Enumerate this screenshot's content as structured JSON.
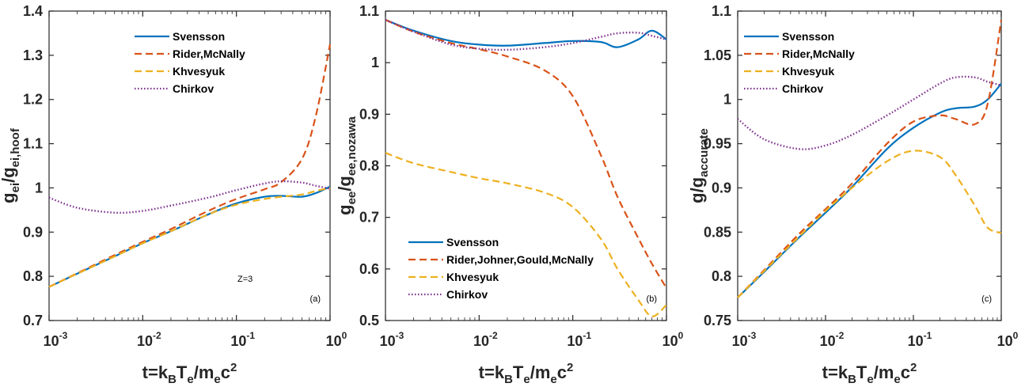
{
  "colors": {
    "Svensson": "#0072BD",
    "Rider": "#D95319",
    "Khvesyuk": "#EDB120",
    "Chirkov": "#7E2F8E"
  },
  "chart_data": [
    {
      "type": "line",
      "panel": "(a)",
      "annotation": "Z=3",
      "xlabel": "t=k_B T_e/m_e c^2",
      "ylabel": "g_ei/g_ei,hoof",
      "xscale": "log",
      "xlim": [
        0.001,
        1
      ],
      "ylim": [
        0.7,
        1.4
      ],
      "xticks": [
        "-3",
        "-2",
        "-1",
        "0"
      ],
      "yticks": [
        "0.7",
        "0.8",
        "0.9",
        "1",
        "1.1",
        "1.2",
        "1.3",
        "1.4"
      ],
      "legend_position": "top-center",
      "x": [
        0.001,
        0.002,
        0.005,
        0.01,
        0.02,
        0.05,
        0.1,
        0.2,
        0.3,
        0.5,
        0.7,
        1
      ],
      "series": [
        {
          "name": "Svensson",
          "style": "solid",
          "values": [
            0.776,
            0.806,
            0.845,
            0.875,
            0.902,
            0.94,
            0.965,
            0.98,
            0.982,
            0.98,
            0.988,
            1.003
          ]
        },
        {
          "name": "Rider,McNally",
          "style": "dashed",
          "values": [
            0.776,
            0.807,
            0.848,
            0.878,
            0.907,
            0.948,
            0.975,
            0.997,
            1.013,
            1.065,
            1.16,
            1.325
          ]
        },
        {
          "name": "Khvesyuk",
          "style": "dashed",
          "values": [
            0.776,
            0.806,
            0.845,
            0.875,
            0.902,
            0.94,
            0.962,
            0.975,
            0.98,
            0.985,
            0.993,
            1.0
          ]
        },
        {
          "name": "Chirkov",
          "style": "dotted",
          "values": [
            0.978,
            0.955,
            0.944,
            0.948,
            0.96,
            0.978,
            0.995,
            1.01,
            1.015,
            1.012,
            1.005,
            0.998
          ]
        }
      ]
    },
    {
      "type": "line",
      "panel": "(b)",
      "xlabel": "t=k_B T_e/m_e c^2",
      "ylabel": "g_ee/g_ee,nozawa",
      "xscale": "log",
      "xlim": [
        0.001,
        1
      ],
      "ylim": [
        0.5,
        1.1
      ],
      "xticks": [
        "-3",
        "-2",
        "-1",
        "0"
      ],
      "yticks": [
        "0.5",
        "0.6",
        "0.7",
        "0.8",
        "0.9",
        "1",
        "1.1"
      ],
      "legend_position": "bottom-left",
      "x": [
        0.001,
        0.002,
        0.005,
        0.01,
        0.02,
        0.05,
        0.1,
        0.2,
        0.3,
        0.5,
        0.7,
        1
      ],
      "series": [
        {
          "name": "Svensson",
          "style": "solid",
          "values": [
            1.083,
            1.062,
            1.042,
            1.035,
            1.033,
            1.038,
            1.042,
            1.04,
            1.03,
            1.045,
            1.062,
            1.045
          ]
        },
        {
          "name": "Rider,Johner,Gould,McNally",
          "style": "dashed",
          "values": [
            1.083,
            1.06,
            1.038,
            1.026,
            1.012,
            0.985,
            0.935,
            0.82,
            0.74,
            0.66,
            0.61,
            0.563
          ]
        },
        {
          "name": "Khvesyuk",
          "style": "dashed",
          "values": [
            0.825,
            0.805,
            0.788,
            0.776,
            0.766,
            0.748,
            0.72,
            0.658,
            0.6,
            0.54,
            0.508,
            0.53
          ]
        },
        {
          "name": "Chirkov",
          "style": "dotted",
          "values": [
            1.083,
            1.06,
            1.035,
            1.027,
            1.025,
            1.03,
            1.038,
            1.05,
            1.057,
            1.058,
            1.052,
            1.045
          ]
        }
      ]
    },
    {
      "type": "line",
      "panel": "(c)",
      "xlabel": "t=k_B T_e/m_e c^2",
      "ylabel": "g/g_accurate",
      "xscale": "log",
      "xlim": [
        0.001,
        1
      ],
      "ylim": [
        0.75,
        1.1
      ],
      "xticks": [
        "-3",
        "-2",
        "-1",
        "0"
      ],
      "yticks": [
        "0.75",
        "0.8",
        "0.85",
        "0.9",
        "0.95",
        "1",
        "1.05",
        "1.1"
      ],
      "legend_position": "top-center",
      "x": [
        0.001,
        0.002,
        0.005,
        0.01,
        0.02,
        0.05,
        0.1,
        0.2,
        0.3,
        0.5,
        0.7,
        1
      ],
      "series": [
        {
          "name": "Svensson",
          "style": "solid",
          "values": [
            0.776,
            0.805,
            0.844,
            0.872,
            0.901,
            0.944,
            0.968,
            0.985,
            0.99,
            0.992,
            1.0,
            1.018
          ]
        },
        {
          "name": "Rider,McNally",
          "style": "dashed",
          "values": [
            0.776,
            0.807,
            0.848,
            0.876,
            0.905,
            0.95,
            0.975,
            0.982,
            0.978,
            0.972,
            0.995,
            1.09
          ]
        },
        {
          "name": "Khvesyuk",
          "style": "dashed",
          "values": [
            0.776,
            0.806,
            0.845,
            0.874,
            0.9,
            0.93,
            0.942,
            0.935,
            0.915,
            0.88,
            0.855,
            0.849
          ]
        },
        {
          "name": "Chirkov",
          "style": "dotted",
          "values": [
            0.978,
            0.955,
            0.944,
            0.948,
            0.96,
            0.982,
            1.0,
            1.018,
            1.025,
            1.025,
            1.02,
            1.016
          ]
        }
      ]
    }
  ]
}
